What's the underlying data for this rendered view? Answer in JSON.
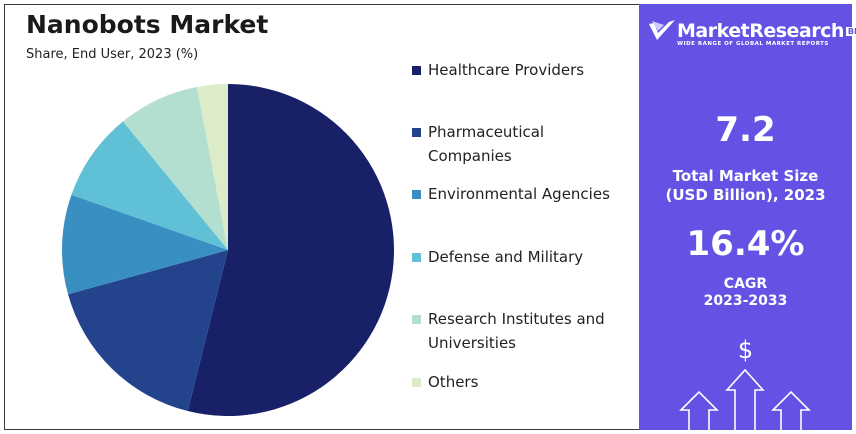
{
  "chart_data": {
    "type": "pie",
    "title": "Nanobots Market",
    "subtitle": "Share, End User, 2023 (%)",
    "categories": [
      "Healthcare Providers",
      "Pharmaceutical Companies",
      "Environmental Agencies",
      "Defense and Military",
      "Research Institutes and Universities",
      "Others"
    ],
    "values": [
      53.9,
      16.8,
      9.7,
      8.7,
      7.9,
      3.0
    ],
    "colors": [
      "#182068",
      "#23448c",
      "#3a8fc2",
      "#5fc0d6",
      "#b2dfd0",
      "#dcebc8"
    ],
    "legend_labels": [
      [
        "Healthcare Providers"
      ],
      [
        "Pharmaceutical",
        "Companies"
      ],
      [
        "Environmental Agencies"
      ],
      [
        "Defense and Military"
      ],
      [
        "Research Institutes and",
        "Universities"
      ],
      [
        "Others"
      ]
    ],
    "legend_position": "right"
  },
  "panel": {
    "logo_name": "MarketResearch",
    "logo_badge": "BIZ",
    "logo_tagline": "WIDE RANGE OF GLOBAL MARKET REPORTS",
    "market_size": "7.2",
    "market_size_label_1": "Total Market Size",
    "market_size_label_2": "(USD Billion), 2023",
    "cagr": "16.4%",
    "cagr_label_1": "CAGR",
    "cagr_label_2": "2023-2033",
    "dollar": "$"
  }
}
